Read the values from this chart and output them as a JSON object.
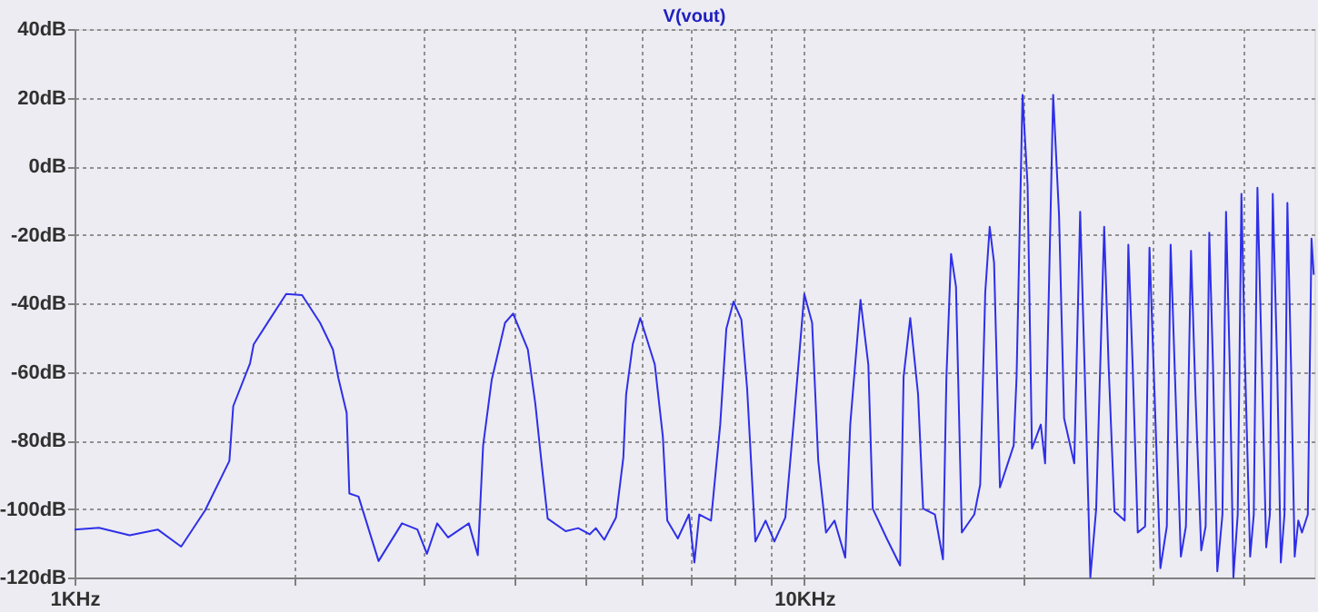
{
  "chart_data": {
    "type": "line",
    "title": "V(vout)",
    "x": [
      1.0,
      1.08,
      1.19,
      1.3,
      1.4,
      1.51,
      1.63,
      1.65,
      1.74,
      1.76,
      1.85,
      1.95,
      2.05,
      2.17,
      2.26,
      2.3,
      2.36,
      2.38,
      2.45,
      2.61,
      2.81,
      2.95,
      3.04,
      3.14,
      3.25,
      3.47,
      3.57,
      3.63,
      3.73,
      3.89,
      3.99,
      4.18,
      4.28,
      4.37,
      4.45,
      4.71,
      4.9,
      5.08,
      5.18,
      5.32,
      5.52,
      5.65,
      5.7,
      5.82,
      5.96,
      6.24,
      6.4,
      6.49,
      6.71,
      6.95,
      7.07,
      7.18,
      7.45,
      7.67,
      7.82,
      8.0,
      8.2,
      8.35,
      8.57,
      8.85,
      9.1,
      9.42,
      9.68,
      10.0,
      10.25,
      10.45,
      10.71,
      11.0,
      11.38,
      11.56,
      11.94,
      12.24,
      12.41,
      12.97,
      13.53,
      13.68,
      13.97,
      14.32,
      14.55,
      15.1,
      15.49,
      15.66,
      15.89,
      16.14,
      16.44,
      17.1,
      17.42,
      17.7,
      17.95,
      18.2,
      18.54,
      19.36,
      19.54,
      19.91,
      20.23,
      20.51,
      21.09,
      21.38,
      21.93,
      22.34,
      22.7,
      23.44,
      23.88,
      24.21,
      24.66,
      25.12,
      25.76,
      26.12,
      26.61,
      27.48,
      27.8,
      28.18,
      28.64,
      29.31,
      29.72,
      30.2,
      30.76,
      31.39,
      31.77,
      32.21,
      32.81,
      33.34,
      33.88,
      34.36,
      34.99,
      35.48,
      35.89,
      36.31,
      36.81,
      37.41,
      37.84,
      38.28,
      38.73,
      39.26,
      39.72,
      40.18,
      40.83,
      41.3,
      41.78,
      42.36,
      42.95,
      43.45,
      43.85,
      44.46,
      44.98,
      45.5,
      45.92,
      46.45,
      46.99,
      47.53,
      48.08,
      48.98,
      49.55,
      49.9
    ],
    "series": [
      {
        "color": "#2f2fe8",
        "values": [
          -106,
          -105.5,
          -107.7,
          -106,
          -111,
          -100.4,
          -86,
          -70,
          -57.5,
          -52,
          -44.8,
          -37.3,
          -37.6,
          -45.7,
          -53.5,
          -62,
          -72,
          -95.5,
          -96.4,
          -115.2,
          -104.2,
          -106,
          -113.1,
          -104.2,
          -108.3,
          -104.2,
          -113.5,
          -81.5,
          -62.3,
          -45.7,
          -43,
          -53.5,
          -69.3,
          -87.6,
          -102.8,
          -106.5,
          -105.6,
          -107.4,
          -105.6,
          -109,
          -102.5,
          -85,
          -66.6,
          -52,
          -44.3,
          -57.9,
          -78.9,
          -103.4,
          -108.6,
          -101.6,
          -115.6,
          -101.6,
          -103.4,
          -75.4,
          -47.4,
          -39.5,
          -44.8,
          -64.9,
          -109.5,
          -103.4,
          -109.5,
          -102.5,
          -73.6,
          -37.3,
          -45.7,
          -85.9,
          -106.9,
          -103.4,
          -114.2,
          -75.4,
          -39,
          -57.9,
          -99.9,
          -108.6,
          -116.5,
          -61.4,
          -44.3,
          -66.6,
          -99.9,
          -101.6,
          -114.7,
          -61.4,
          -25.6,
          -35.2,
          -106.9,
          -101.6,
          -92.9,
          -36.9,
          -17.7,
          -28.2,
          -93.7,
          -81.5,
          -61.4,
          20.8,
          -5.5,
          -82.4,
          -75.4,
          -86.7,
          20.8,
          -14.2,
          -73.6,
          -86.7,
          -13.3,
          -57.9,
          -120,
          -99.9,
          -17.7,
          -57.9,
          -100.7,
          -103.4,
          -22.9,
          -57.9,
          -106.9,
          -105.1,
          -23.8,
          -66.6,
          -117.3,
          -105.1,
          -22.9,
          -61.4,
          -113.9,
          -105.1,
          -24.7,
          -66.6,
          -112.1,
          -105.1,
          -19.4,
          -57.9,
          -118.2,
          -101.6,
          -13.3,
          -57.9,
          -120,
          -101.6,
          -8.1,
          -57.9,
          -113.9,
          -101.6,
          -6.3,
          -57.9,
          -111.2,
          -101.6,
          -8.1,
          -57.9,
          -115.6,
          -101.6,
          -10.7,
          -57.9,
          -113.9,
          -103.4,
          -106.9,
          -101.6,
          -21.1,
          -31.7
        ]
      }
    ],
    "log": "x",
    "xlim": [
      1,
      50
    ],
    "xticks": [
      {
        "value": 1,
        "label": "1KHz"
      },
      {
        "value": 2,
        "label": null
      },
      {
        "value": 3,
        "label": null
      },
      {
        "value": 4,
        "label": null
      },
      {
        "value": 5,
        "label": null
      },
      {
        "value": 6,
        "label": null
      },
      {
        "value": 7,
        "label": null
      },
      {
        "value": 8,
        "label": null
      },
      {
        "value": 9,
        "label": null
      },
      {
        "value": 10,
        "label": "10KHz"
      },
      {
        "value": 20,
        "label": null
      },
      {
        "value": 30,
        "label": null
      },
      {
        "value": 40,
        "label": null
      }
    ],
    "ylim": [
      -120,
      40
    ],
    "yticks": [
      {
        "value": -120,
        "label": "-120dB"
      },
      {
        "value": -100,
        "label": "-100dB"
      },
      {
        "value": -80,
        "label": "-80dB"
      },
      {
        "value": -60,
        "label": "-60dB"
      },
      {
        "value": -40,
        "label": "-40dB"
      },
      {
        "value": -20,
        "label": "-20dB"
      },
      {
        "value": 0,
        "label": "0dB"
      },
      {
        "value": 20,
        "label": "20dB"
      },
      {
        "value": 40,
        "label": "40dB"
      }
    ],
    "grid": true,
    "marker": "none",
    "line_style": "solid"
  }
}
